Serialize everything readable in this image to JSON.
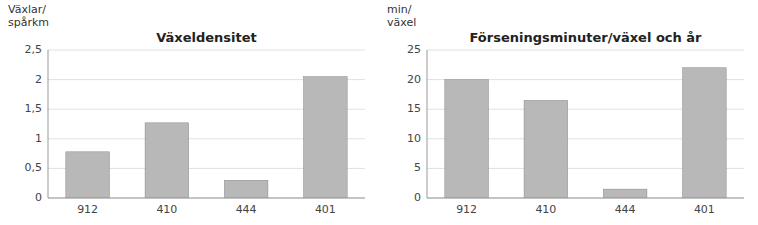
{
  "chart_data": [
    {
      "type": "bar",
      "title": "Växeldensitet",
      "ylabel": "Växlar/\nspårkm",
      "categories": [
        "912",
        "410",
        "444",
        "401"
      ],
      "values": [
        0.78,
        1.27,
        0.3,
        2.05
      ],
      "color": "#b8b8b8",
      "ylim": [
        0,
        2.5
      ],
      "yticks": [
        0,
        {
          "value": 0.5,
          "label": "0,5"
        },
        1,
        {
          "value": 1.5,
          "label": "1,5"
        },
        2,
        {
          "value": 2.5,
          "label": "2,5"
        }
      ],
      "grid": true
    },
    {
      "type": "bar",
      "title": "Förseningsminuter/växel och år",
      "ylabel": "min/\nväxel",
      "categories": [
        "912",
        "410",
        "444",
        "401"
      ],
      "values": [
        20.0,
        16.5,
        1.5,
        22.0
      ],
      "color": "#b8b8b8",
      "ylim": [
        0,
        25
      ],
      "yticks": [
        0,
        5,
        10,
        15,
        20,
        25
      ],
      "grid": true
    }
  ]
}
